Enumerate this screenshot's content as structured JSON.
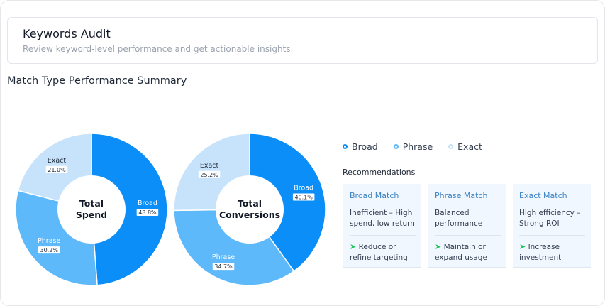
{
  "header": {
    "title": "Keywords Audit",
    "subtitle": "Review keyword-level performance and get actionable insights."
  },
  "section": {
    "title": "Match Type Performance Summary"
  },
  "colors": {
    "broad": "#0b8ef7",
    "phrase": "#5eb9fb",
    "exact": "#c7e3fc",
    "accent": "#3b82c4",
    "arrow": "#22c55e"
  },
  "chart_data": [
    {
      "type": "pie",
      "center_label": [
        "Total",
        "Spend"
      ],
      "categories": [
        "Broad",
        "Phrase",
        "Exact"
      ],
      "values": [
        48.8,
        30.2,
        21.0
      ],
      "value_labels": [
        "48.8%",
        "30.2%",
        "21.0%"
      ]
    },
    {
      "type": "pie",
      "center_label": [
        "Total",
        "Conversions"
      ],
      "categories": [
        "Broad",
        "Phrase",
        "Exact"
      ],
      "values": [
        40.1,
        34.7,
        25.2
      ],
      "value_labels": [
        "40.1%",
        "34.7%",
        "25.2%"
      ]
    }
  ],
  "legend": [
    "Broad",
    "Phrase",
    "Exact"
  ],
  "recommendations": {
    "title": "Recommendations",
    "cards": [
      {
        "title": "Broad Match",
        "desc": "Inefficient – High spend, low return",
        "action": "Reduce or refine targeting"
      },
      {
        "title": "Phrase Match",
        "desc": "Balanced performance",
        "action": "Maintain or expand usage"
      },
      {
        "title": "Exact Match",
        "desc": "High efficiency – Strong ROI",
        "action": "Increase investment"
      }
    ]
  }
}
